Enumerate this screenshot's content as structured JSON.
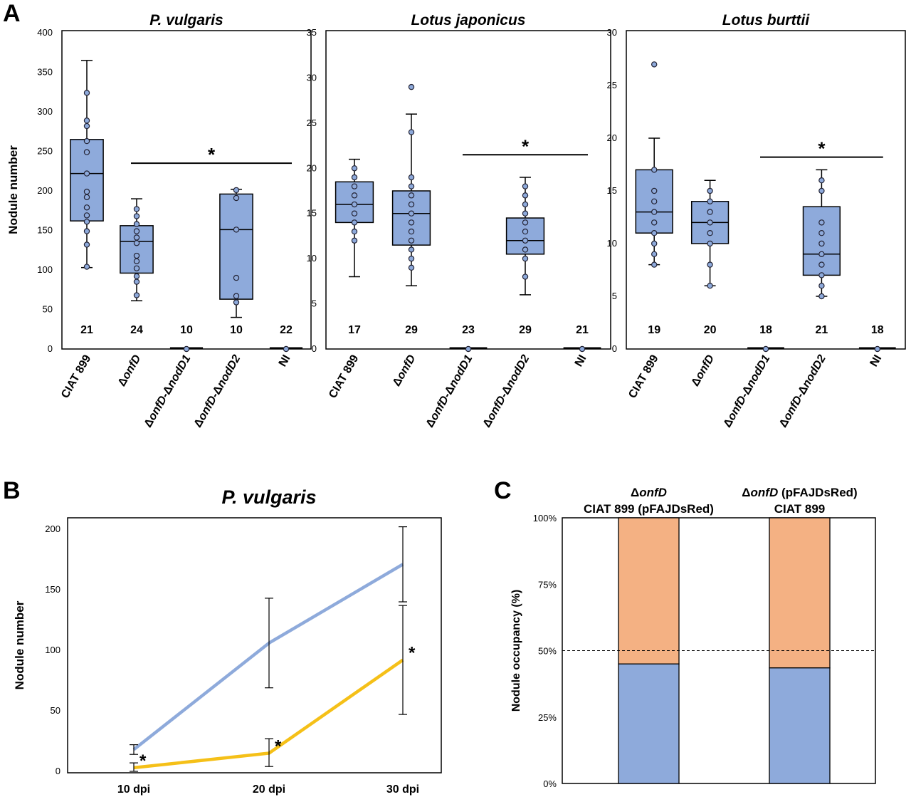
{
  "panel_labels": [
    "A",
    "B",
    "C"
  ],
  "colors": {
    "box": "#8eaadb",
    "blue_line": "#8eaadb",
    "yellow_line": "#f5c018",
    "orange": "#f4b183",
    "blue_bar": "#8eaadb"
  },
  "chart_data": [
    {
      "type": "box",
      "title": "P. vulgaris",
      "ylabel": "Nodule number",
      "ylim": [
        0,
        400
      ],
      "yticks": [
        0,
        50,
        100,
        150,
        200,
        250,
        300,
        350,
        400
      ],
      "categories": [
        "CIAT 899",
        "ΔonfD",
        "ΔonfD-ΔnodD1",
        "ΔonfD-ΔnodD2",
        "NI"
      ],
      "n": [
        "21",
        "24",
        "10",
        "10",
        "22"
      ],
      "significance": {
        "from": 1,
        "to": 4,
        "y": 235,
        "label": "*"
      },
      "boxes": [
        {
          "min": 103,
          "q1": 162,
          "median": 222,
          "q3": 265,
          "max": 365,
          "points": [
            324,
            289,
            282,
            263,
            249,
            222,
            199,
            192,
            179,
            169,
            161,
            149,
            132,
            104
          ]
        },
        {
          "min": 61,
          "q1": 96,
          "median": 136,
          "q3": 156,
          "max": 190,
          "points": [
            177,
            168,
            158,
            149,
            141,
            134,
            118,
            111,
            102,
            92,
            85,
            68
          ]
        },
        {
          "min": 0,
          "q1": 0,
          "median": 0,
          "q3": 0,
          "max": 0,
          "points": [
            0
          ]
        },
        {
          "min": 40,
          "q1": 63,
          "median": 151,
          "q3": 196,
          "max": 202,
          "points": [
            201,
            191,
            151,
            90,
            67,
            59
          ]
        },
        {
          "min": 0,
          "q1": 0,
          "median": 0,
          "q3": 0,
          "max": 0,
          "points": [
            0
          ]
        }
      ]
    },
    {
      "type": "box",
      "title": "Lotus japonicus",
      "ylim": [
        0,
        35
      ],
      "yticks": [
        0,
        5,
        10,
        15,
        20,
        25,
        30,
        35
      ],
      "categories": [
        "CIAT 899",
        "ΔonfD",
        "ΔonfD-ΔnodD1",
        "ΔonfD-ΔnodD2",
        "NI"
      ],
      "n": [
        "17",
        "29",
        "23",
        "29",
        "21"
      ],
      "significance": {
        "from": 2,
        "to": 4,
        "y": 21.5,
        "label": "*"
      },
      "boxes": [
        {
          "min": 8,
          "q1": 14,
          "median": 16,
          "q3": 18.5,
          "max": 21,
          "points": [
            20,
            19,
            18,
            17,
            16,
            15,
            14,
            13,
            12
          ]
        },
        {
          "min": 7,
          "q1": 11.5,
          "median": 15,
          "q3": 17.5,
          "max": 26,
          "points": [
            29,
            24,
            19,
            18,
            17,
            16,
            15,
            14,
            13,
            12,
            11,
            10,
            9
          ]
        },
        {
          "min": 0,
          "q1": 0,
          "median": 0,
          "q3": 0,
          "max": 0,
          "points": [
            0
          ]
        },
        {
          "min": 6,
          "q1": 10.5,
          "median": 12,
          "q3": 14.5,
          "max": 19,
          "points": [
            18,
            17,
            16,
            15,
            14,
            13,
            12,
            11,
            10,
            8
          ]
        },
        {
          "min": 0,
          "q1": 0,
          "median": 0,
          "q3": 0,
          "max": 0,
          "points": [
            0
          ]
        }
      ]
    },
    {
      "type": "box",
      "title": "Lotus burttii",
      "ylim": [
        0,
        30
      ],
      "yticks": [
        0,
        5,
        10,
        15,
        20,
        25,
        30
      ],
      "categories": [
        "CIAT 899",
        "ΔonfD",
        "ΔonfD-ΔnodD1",
        "ΔonfD-ΔnodD2",
        "NI"
      ],
      "n": [
        "19",
        "20",
        "18",
        "21",
        "18"
      ],
      "significance": {
        "from": 2,
        "to": 4,
        "y": 18.2,
        "label": "*"
      },
      "boxes": [
        {
          "min": 8,
          "q1": 11,
          "median": 13,
          "q3": 17,
          "max": 20,
          "points": [
            27,
            17,
            15,
            14,
            13,
            12,
            11,
            10,
            9,
            8
          ]
        },
        {
          "min": 6,
          "q1": 10,
          "median": 12,
          "q3": 14,
          "max": 16,
          "points": [
            15,
            14,
            13,
            12,
            11,
            10,
            8,
            6
          ]
        },
        {
          "min": 0,
          "q1": 0,
          "median": 0,
          "q3": 0,
          "max": 0,
          "points": [
            0
          ]
        },
        {
          "min": 5,
          "q1": 7,
          "median": 9,
          "q3": 13.5,
          "max": 17,
          "points": [
            16,
            15,
            12,
            11,
            10,
            9,
            8,
            7,
            6,
            5
          ]
        },
        {
          "min": 0,
          "q1": 0,
          "median": 0,
          "q3": 0,
          "max": 0,
          "points": [
            0
          ]
        }
      ]
    },
    {
      "type": "line",
      "title": "P. vulgaris",
      "ylabel": "Nodule number",
      "ylim": [
        0,
        200
      ],
      "yticks": [
        0,
        50,
        100,
        150,
        200
      ],
      "categories": [
        "10 dpi",
        "20 dpi",
        "30 dpi"
      ],
      "series": [
        {
          "color": "#8eaadb",
          "values": [
            18,
            106,
            171
          ],
          "err_low": [
            14,
            69,
            140
          ],
          "err_high": [
            22,
            143,
            202
          ],
          "stars": [
            false,
            false,
            false
          ]
        },
        {
          "color": "#f5c018",
          "values": [
            3,
            15,
            92
          ],
          "err_low": [
            0,
            4,
            47
          ],
          "err_high": [
            7,
            27,
            137
          ],
          "stars": [
            true,
            true,
            true
          ]
        }
      ],
      "star_label": "*"
    },
    {
      "type": "stacked-bar",
      "ylabel": "Nodule occupancy (%)",
      "ylim": [
        0,
        100
      ],
      "yticks": [
        "0%",
        "25%",
        "50%",
        "75%",
        "100%"
      ],
      "reference_line": 50,
      "bars": [
        {
          "label_top": "ΔonfD",
          "label_bottom": "CIAT 899 (pFAJDsRed)",
          "blue": 45,
          "orange": 55
        },
        {
          "label_top": "ΔonfD (pFAJDsRed)",
          "label_bottom": "CIAT 899",
          "blue": 43.5,
          "orange": 56.5
        }
      ]
    }
  ]
}
